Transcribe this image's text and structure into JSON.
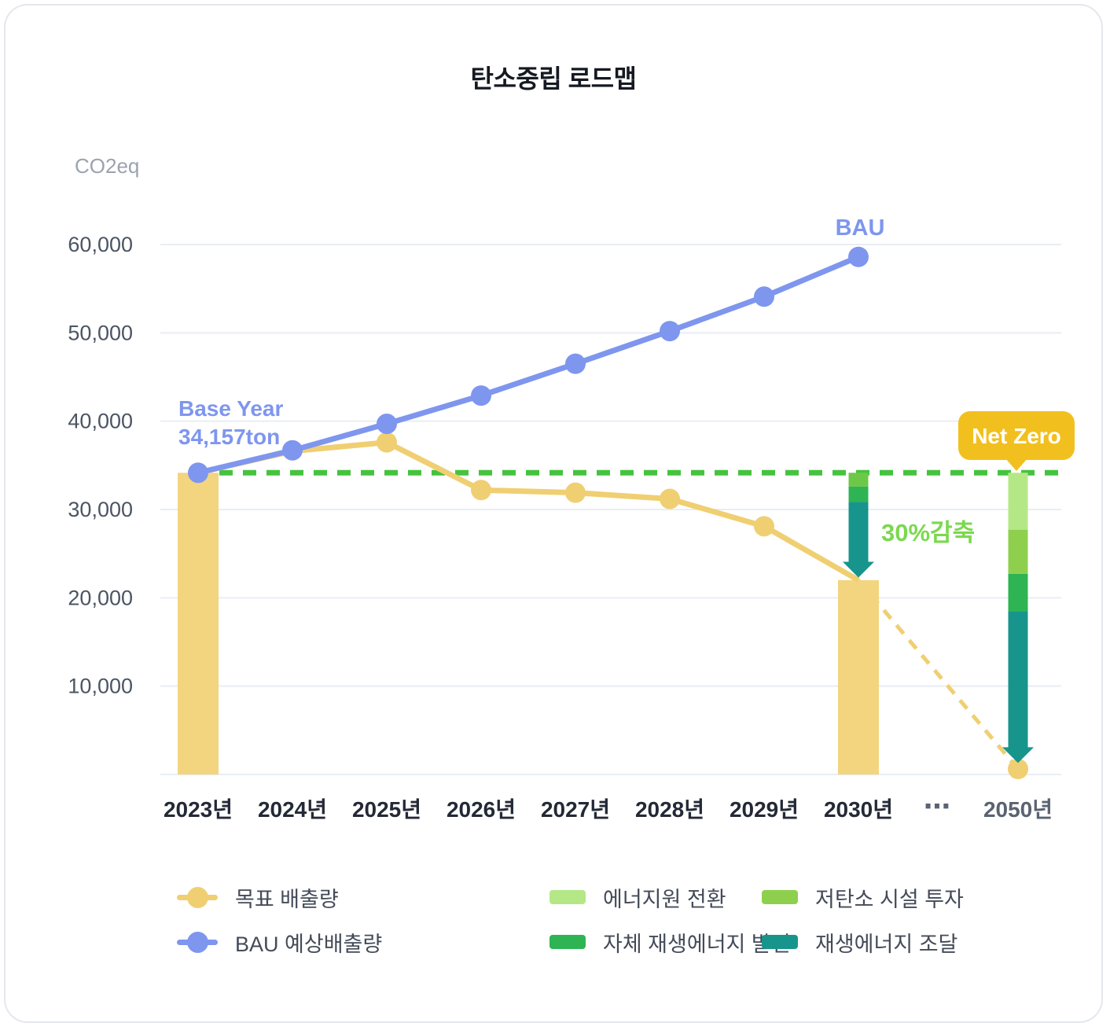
{
  "card": {
    "title": "탄소중립 로드맵"
  },
  "chart_data": {
    "type": "line",
    "title": "탄소중립 로드맵",
    "unit_label": "CO2eq",
    "ylim": [
      0,
      63000
    ],
    "grid": true,
    "y_ticks": [
      {
        "value": 10000,
        "label": "10,000"
      },
      {
        "value": 20000,
        "label": "20,000"
      },
      {
        "value": 30000,
        "label": "30,000"
      },
      {
        "value": 40000,
        "label": "40,000"
      },
      {
        "value": 50000,
        "label": "50,000"
      },
      {
        "value": 60000,
        "label": "60,000"
      }
    ],
    "categories": [
      "2023년",
      "2024년",
      "2025년",
      "2026년",
      "2027년",
      "2028년",
      "2029년",
      "2030년"
    ],
    "x_axis_ellipsis": "⋯",
    "future_category": "2050년",
    "series": [
      {
        "name": "목표 배출량",
        "color": "#f0cf72",
        "values": [
          34157,
          36600,
          37600,
          32200,
          31900,
          31200,
          28100,
          22000
        ],
        "marker_indices": [
          2,
          3,
          4,
          5,
          6
        ],
        "future_value": 0,
        "future_style": "dashed"
      },
      {
        "name": "BAU 예상배출량",
        "color": "#7e96ee",
        "values": [
          34157,
          36700,
          39700,
          42900,
          46500,
          50200,
          54100,
          58600
        ],
        "marker_indices": [
          0,
          1,
          2,
          3,
          4,
          5,
          6,
          7
        ]
      }
    ],
    "bars": [
      {
        "category": "2023년",
        "value": 34157,
        "color": "#f3d57f"
      },
      {
        "category": "2030년",
        "value": 22000,
        "color": "#f3d57f"
      }
    ],
    "baseline": {
      "value": 34157,
      "color": "#45c33e",
      "label_line1": "Base Year",
      "label_line2": "34,157ton",
      "label_color": "#7e96ee"
    },
    "annotations": {
      "bau_label": "BAU",
      "bau_label_color": "#7e96ee",
      "reduction_label": "30%감축",
      "reduction_label_color": "#7cd84f",
      "net_zero_label": "Net Zero",
      "net_zero_badge_color": "#f2c01e"
    },
    "reduction_arrows": [
      {
        "at": "2030년",
        "from_value": 34157,
        "to_value": 22300,
        "segments": [
          {
            "name": "저탄소 시설 투자",
            "value": 1600,
            "color": "#6ec847"
          },
          {
            "name": "자체 재생에너지 발전",
            "value": 1800,
            "color": "#2eb453"
          },
          {
            "name": "재생에너지 조달",
            "value": 8757,
            "color": "#17958c"
          }
        ]
      },
      {
        "at": "2050년",
        "from_value": 34157,
        "to_value": 1300,
        "segments": [
          {
            "name": "에너지원 전환",
            "value": 6700,
            "color": "#b4e886"
          },
          {
            "name": "저탄소 시설 투자",
            "value": 5200,
            "color": "#8ed04e"
          },
          {
            "name": "자체 재생에너지 발전",
            "value": 4400,
            "color": "#2eb453"
          },
          {
            "name": "재생에너지 조달",
            "value": 17857,
            "color": "#17958c"
          }
        ]
      }
    ],
    "axis_colors": {
      "unit_label": "#9ba3ae",
      "y_tick": "#4b5563",
      "x_tick": "#232936",
      "x_tick_future": "#5a6372",
      "grid_line": "#e9edf4"
    }
  },
  "legend": {
    "items": [
      {
        "type": "line-dot",
        "color": "#f0cf72",
        "label": "목표 배출량"
      },
      {
        "type": "line-dot",
        "color": "#7e96ee",
        "label": "BAU 예상배출량"
      },
      {
        "type": "swatch",
        "color": "#b4e886",
        "label": "에너지원 전환"
      },
      {
        "type": "swatch",
        "color": "#2eb453",
        "label": "자체 재생에너지 발전"
      },
      {
        "type": "swatch",
        "color": "#8ed04e",
        "label": "저탄소 시설 투자"
      },
      {
        "type": "swatch",
        "color": "#17958c",
        "label": "재생에너지 조달"
      }
    ]
  }
}
